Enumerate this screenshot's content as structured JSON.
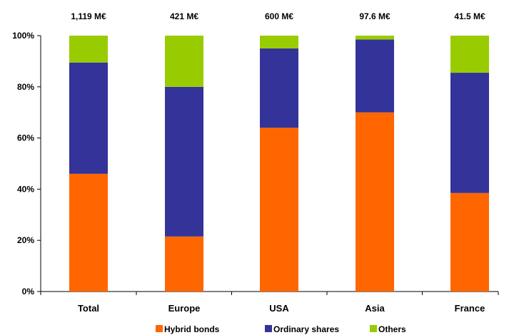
{
  "chart_data": {
    "type": "bar",
    "stacked": true,
    "normalized": true,
    "categories": [
      "Total",
      "Europe",
      "USA",
      "Asia",
      "France"
    ],
    "totals": [
      "1,119 M€",
      "421 M€",
      "600 M€",
      "97.6 M€",
      "41.5 M€"
    ],
    "series": [
      {
        "name": "Hybrid bonds",
        "color": "#ff6600",
        "values": [
          46,
          21.5,
          64,
          70,
          38.5
        ]
      },
      {
        "name": "Ordinary shares",
        "color": "#333399",
        "values": [
          43.5,
          58.5,
          31,
          28.5,
          47
        ]
      },
      {
        "name": "Others",
        "color": "#99cc00",
        "values": [
          10.5,
          20,
          5,
          1.5,
          14.5
        ]
      }
    ],
    "yticks": [
      "0%",
      "20%",
      "40%",
      "60%",
      "80%",
      "100%"
    ],
    "ylim": [
      0,
      100
    ],
    "grid": false,
    "legend_position": "bottom"
  }
}
